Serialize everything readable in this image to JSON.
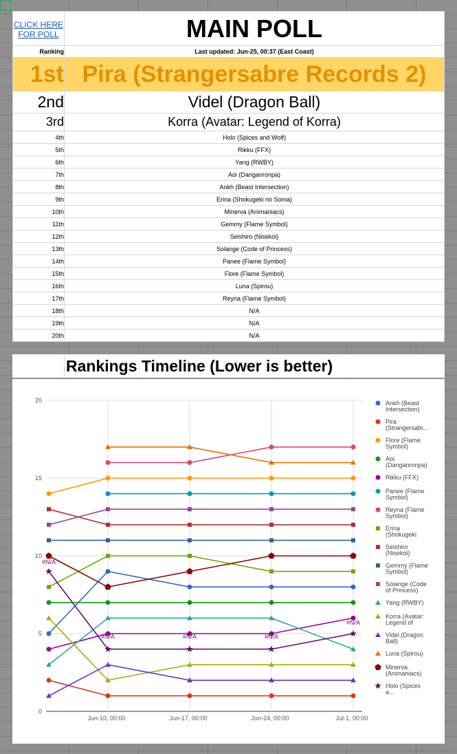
{
  "poll_link_label": "CLICK HERE FOR POLL",
  "main_title": "MAIN POLL",
  "ranking_label": "Ranking",
  "last_updated": "Last updated: Jun-25, 00:37 (East Coast)",
  "rankings": [
    {
      "rank": "1st",
      "name": "Pira (Strangersabre Records 2)"
    },
    {
      "rank": "2nd",
      "name": "Videl (Dragon Ball)"
    },
    {
      "rank": "3rd",
      "name": "Korra (Avatar: Legend of Korra)"
    },
    {
      "rank": "4th",
      "name": "Holo (Spices and Wolf)"
    },
    {
      "rank": "5th",
      "name": "Rikku (FFX)"
    },
    {
      "rank": "6th",
      "name": "Yang (RWBY)"
    },
    {
      "rank": "7th",
      "name": "Aoi (Danganronpa)"
    },
    {
      "rank": "8th",
      "name": "Ankh (Beast Intersection)"
    },
    {
      "rank": "9th",
      "name": "Erina (Shokugeki no Soma)"
    },
    {
      "rank": "10th",
      "name": "Minerva (Animaniacs)"
    },
    {
      "rank": "11th",
      "name": "Gemmy (Flame Symbol)"
    },
    {
      "rank": "12th",
      "name": "Seishiro (Nisekoi)"
    },
    {
      "rank": "13th",
      "name": "Solange (Code of Princess)"
    },
    {
      "rank": "14th",
      "name": "Panee (Flame Symbol)"
    },
    {
      "rank": "15th",
      "name": "Flore (Flame Symbol)"
    },
    {
      "rank": "16th",
      "name": "Luna (Spirou)"
    },
    {
      "rank": "17th",
      "name": "Reyna (Flame Symbol)"
    },
    {
      "rank": "18th",
      "name": "N/A"
    },
    {
      "rank": "19th",
      "name": "N/A"
    },
    {
      "rank": "20th",
      "name": "N/A"
    }
  ],
  "chart_title": "Rankings Timeline (Lower is better)",
  "chart_data": {
    "type": "line",
    "title": "Rankings Timeline (Lower is better)",
    "xlabel": "",
    "ylabel": "",
    "x": [
      "Jun-06",
      "Jun-10",
      "Jun-17",
      "Jun-24",
      "Jul-1"
    ],
    "xticks": [
      "Jun-10, 00:00",
      "Jun-17, 00:00",
      "Jun-24, 00:00",
      "Jul-1, 00:00"
    ],
    "yticks": [
      "0",
      "5",
      "10",
      "15",
      "20"
    ],
    "ylim": [
      0,
      20
    ],
    "grid": true,
    "legend": "right",
    "na_label": "#N/A",
    "na_markers": [
      [
        "Jun-06",
        9.6
      ],
      [
        "Jun-10",
        4.8
      ],
      [
        "Jun-17",
        4.8
      ],
      [
        "Jun-24",
        4.8
      ],
      [
        "Jul-1",
        5.7
      ]
    ],
    "series": [
      {
        "name": "Ankh (Beast Intersection)",
        "color": "#3366cc",
        "marker": "circle",
        "values": [
          5,
          9,
          8,
          8,
          8
        ]
      },
      {
        "name": "Pira (Strangersabr...",
        "color": "#dc3912",
        "marker": "circle",
        "values": [
          2,
          1,
          1,
          1,
          1
        ]
      },
      {
        "name": "Flore (Flame Symbol)",
        "color": "#ff9900",
        "marker": "circle",
        "values": [
          14,
          15,
          15,
          15,
          15
        ]
      },
      {
        "name": "Aoi (Danganronpa)",
        "color": "#109618",
        "marker": "circle",
        "values": [
          7,
          7,
          7,
          7,
          7
        ]
      },
      {
        "name": "Rikku (FFX)",
        "color": "#990099",
        "marker": "circle",
        "values": [
          4,
          5,
          5,
          5,
          6
        ]
      },
      {
        "name": "Panee (Flame Symbol)",
        "color": "#0099c6",
        "marker": "circle",
        "values": [
          null,
          14,
          14,
          14,
          14
        ]
      },
      {
        "name": "Reyna (Flame Symbol)",
        "color": "#dd4477",
        "marker": "circle",
        "values": [
          null,
          16,
          16,
          17,
          17
        ]
      },
      {
        "name": "Erina (Shokugeki no...",
        "color": "#66aa00",
        "marker": "square",
        "values": [
          8,
          10,
          10,
          9,
          9
        ]
      },
      {
        "name": "Seishiro (Nisekoi)",
        "color": "#b82e2e",
        "marker": "square",
        "values": [
          13,
          12,
          12,
          12,
          12
        ]
      },
      {
        "name": "Gemmy (Flame Symbol)",
        "color": "#316395",
        "marker": "square",
        "values": [
          11,
          11,
          11,
          11,
          11
        ]
      },
      {
        "name": "Solange (Code of Princess)",
        "color": "#994499",
        "marker": "square",
        "values": [
          12,
          13,
          13,
          13,
          13
        ]
      },
      {
        "name": "Yang (RWBY)",
        "color": "#22aa99",
        "marker": "triangle",
        "values": [
          3,
          6,
          6,
          6,
          4
        ]
      },
      {
        "name": "Korra (Avatar: Legend of Korr...",
        "color": "#aaaa11",
        "marker": "triangle",
        "values": [
          6,
          2,
          3,
          3,
          3
        ]
      },
      {
        "name": "Videl (Dragon Ball)",
        "color": "#6633cc",
        "marker": "triangle",
        "values": [
          1,
          3,
          2,
          2,
          2
        ]
      },
      {
        "name": "Luna (Spirou)",
        "color": "#e67300",
        "marker": "triangle",
        "values": [
          null,
          17,
          17,
          16,
          16
        ]
      },
      {
        "name": "Minerva (Animaniacs)",
        "color": "#8b0707",
        "marker": "pentagon",
        "values": [
          10,
          8,
          9,
          10,
          10
        ]
      },
      {
        "name": "Holo (Spices a...",
        "color": "#651067",
        "marker": "star",
        "values": [
          9,
          4,
          4,
          4,
          5
        ]
      }
    ]
  }
}
